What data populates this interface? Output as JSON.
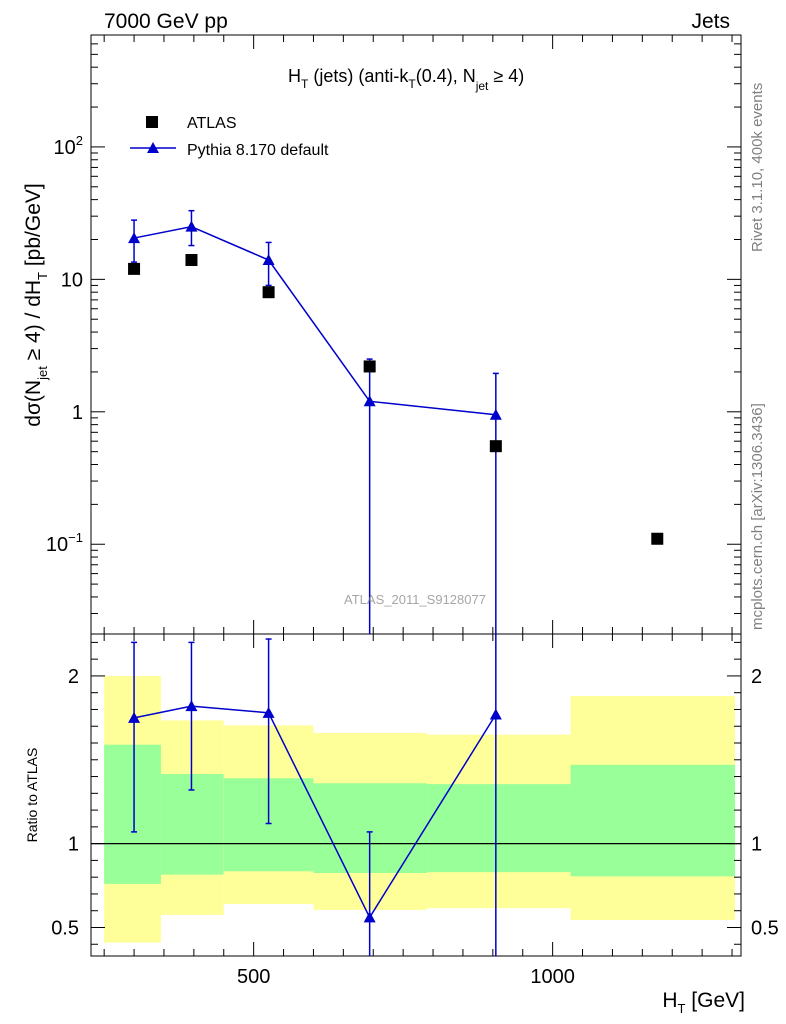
{
  "header": {
    "left": "7000 GeV pp",
    "right": "Jets"
  },
  "side_text": {
    "rivet": "Rivet 3.1.10,  400k events",
    "site": "mcplots.cern.ch [arXiv:1306.3436]"
  },
  "watermark": "ATLAS_2011_S9128077",
  "colors": {
    "pythia": "#0000cc",
    "band_inner": "#99ff99",
    "band_outer": "#ffff99",
    "atlas": "#000000"
  },
  "chart_data": [
    {
      "type": "scatter",
      "title": "H_T (jets) (anti-k_T(0.4), N_jet ≥ 4)",
      "ylabel": "dσ(N_jet ≥ 4) / dH_T [pb/GeV]",
      "xlabel": "",
      "yscale": "log",
      "xlim": [
        228,
        1315
      ],
      "ylim": [
        0.021,
        700
      ],
      "yticks": [
        {
          "value": 0.1,
          "base": "10",
          "exp": "−1"
        },
        {
          "value": 1,
          "base": "1",
          "exp": ""
        },
        {
          "value": 10,
          "base": "10",
          "exp": ""
        },
        {
          "value": 100,
          "base": "10",
          "exp": "2"
        }
      ],
      "legend": {
        "placement": "top-left",
        "entries": [
          "ATLAS",
          "Pythia 8.170 default"
        ]
      },
      "series": [
        {
          "name": "ATLAS",
          "marker": "square",
          "x": [
            300,
            396,
            525,
            694,
            905,
            1175
          ],
          "y": [
            12,
            14,
            8,
            2.2,
            0.55,
            0.11
          ]
        },
        {
          "name": "Pythia 8.170 default",
          "marker": "triangle",
          "x": [
            300,
            396,
            525,
            694,
            905
          ],
          "y": [
            20.5,
            25,
            14,
            1.2,
            0.95
          ],
          "err_low": [
            7,
            7,
            5,
            1.19,
            0.94
          ],
          "err_high": [
            7.5,
            8,
            5,
            1.3,
            1.0
          ]
        }
      ]
    },
    {
      "type": "line",
      "ylabel": "Ratio to ATLAS",
      "xlabel": "H_T [GeV]",
      "xlim": [
        228,
        1315
      ],
      "ylim": [
        0.33,
        2.25
      ],
      "xticks": [
        500,
        1000
      ],
      "yticks": [
        0.5,
        1,
        2
      ],
      "reference_line": 1,
      "bands": [
        {
          "x_low": 250,
          "x_high": 345,
          "inner": [
            0.76,
            1.59
          ],
          "outer": [
            0.41,
            2.0
          ]
        },
        {
          "x_low": 345,
          "x_high": 450,
          "inner": [
            0.815,
            1.415
          ],
          "outer": [
            0.575,
            1.735
          ]
        },
        {
          "x_low": 450,
          "x_high": 600,
          "inner": [
            0.835,
            1.39
          ],
          "outer": [
            0.64,
            1.705
          ]
        },
        {
          "x_low": 600,
          "x_high": 790,
          "inner": [
            0.825,
            1.36
          ],
          "outer": [
            0.605,
            1.66
          ]
        },
        {
          "x_low": 790,
          "x_high": 1030,
          "inner": [
            0.83,
            1.355
          ],
          "outer": [
            0.615,
            1.65
          ]
        },
        {
          "x_low": 1030,
          "x_high": 1305,
          "inner": [
            0.805,
            1.47
          ],
          "outer": [
            0.545,
            1.88
          ]
        }
      ],
      "series": [
        {
          "name": "Pythia 8.170 default",
          "marker": "triangle",
          "x": [
            300,
            396,
            525,
            694,
            905
          ],
          "y": [
            1.75,
            1.82,
            1.78,
            0.56,
            1.77
          ],
          "err_low": [
            0.68,
            0.5,
            0.66,
            0.56,
            1.77
          ],
          "err_high": [
            0.45,
            0.38,
            0.44,
            0.51,
            0.5
          ]
        }
      ]
    }
  ]
}
